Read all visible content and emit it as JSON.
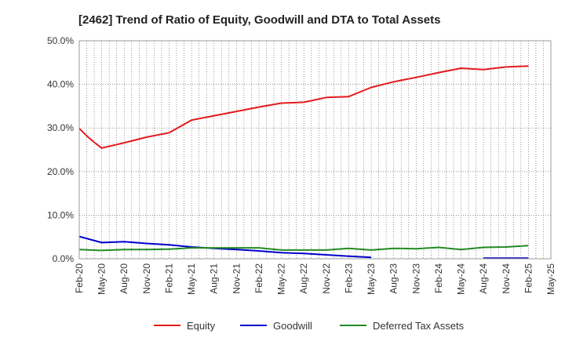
{
  "chart_data": {
    "type": "line",
    "title": "[2462]  Trend of Ratio of Equity, Goodwill and DTA to Total Assets",
    "xlabel": "",
    "ylabel": "",
    "ylim": [
      0,
      50
    ],
    "yticks": [
      0,
      10,
      20,
      30,
      40,
      50
    ],
    "ytick_labels": [
      "0.0%",
      "10.0%",
      "20.0%",
      "30.0%",
      "40.0%",
      "50.0%"
    ],
    "grid": true,
    "legend_position": "bottom",
    "x_axis": {
      "start": "Feb-20",
      "end": "May-25",
      "months_total": 63,
      "tick_labels": [
        "Feb-20",
        "May-20",
        "Aug-20",
        "Nov-20",
        "Feb-21",
        "May-21",
        "Aug-21",
        "Nov-21",
        "Feb-22",
        "May-22",
        "Aug-22",
        "Nov-22",
        "Feb-23",
        "May-23",
        "Aug-23",
        "Nov-23",
        "Feb-24",
        "May-24",
        "Aug-24",
        "Nov-24",
        "Feb-25",
        "May-25"
      ]
    },
    "series": [
      {
        "name": "Equity",
        "color": "#e31a1c",
        "points": [
          [
            0,
            29.9
          ],
          [
            1,
            28.2
          ],
          [
            2,
            26.7
          ],
          [
            3,
            25.4
          ],
          [
            6,
            26.6
          ],
          [
            9,
            27.9
          ],
          [
            12,
            28.9
          ],
          [
            15,
            31.8
          ],
          [
            18,
            32.8
          ],
          [
            21,
            33.8
          ],
          [
            24,
            34.8
          ],
          [
            27,
            35.7
          ],
          [
            30,
            35.9
          ],
          [
            33,
            37.0
          ],
          [
            36,
            37.2
          ],
          [
            39,
            39.3
          ],
          [
            42,
            40.6
          ],
          [
            45,
            41.6
          ],
          [
            48,
            42.7
          ],
          [
            51,
            43.7
          ],
          [
            54,
            43.4
          ],
          [
            57,
            44.0
          ],
          [
            60,
            44.2
          ]
        ]
      },
      {
        "name": "Goodwill",
        "color": "#0000cc",
        "points": [
          [
            0,
            5.1
          ],
          [
            3,
            3.7
          ],
          [
            6,
            3.9
          ],
          [
            9,
            3.5
          ],
          [
            12,
            3.2
          ],
          [
            15,
            2.7
          ],
          [
            18,
            2.4
          ],
          [
            21,
            2.1
          ],
          [
            24,
            1.8
          ],
          [
            27,
            1.4
          ],
          [
            30,
            1.2
          ],
          [
            33,
            0.9
          ],
          [
            36,
            0.6
          ],
          [
            39,
            0.3
          ],
          null,
          [
            54,
            0.15
          ],
          [
            57,
            0.15
          ],
          [
            60,
            0.15
          ]
        ]
      },
      {
        "name": "Deferred Tax Assets",
        "color": "#228b22",
        "points": [
          [
            0,
            2.1
          ],
          [
            3,
            1.9
          ],
          [
            6,
            2.1
          ],
          [
            9,
            2.1
          ],
          [
            12,
            2.2
          ],
          [
            15,
            2.5
          ],
          [
            18,
            2.5
          ],
          [
            21,
            2.5
          ],
          [
            24,
            2.5
          ],
          [
            27,
            2.0
          ],
          [
            30,
            2.0
          ],
          [
            33,
            2.0
          ],
          [
            36,
            2.4
          ],
          [
            39,
            2.0
          ],
          [
            42,
            2.4
          ],
          [
            45,
            2.3
          ],
          [
            48,
            2.6
          ],
          [
            51,
            2.1
          ],
          [
            54,
            2.6
          ],
          [
            57,
            2.7
          ],
          [
            60,
            3.0
          ]
        ]
      }
    ]
  }
}
